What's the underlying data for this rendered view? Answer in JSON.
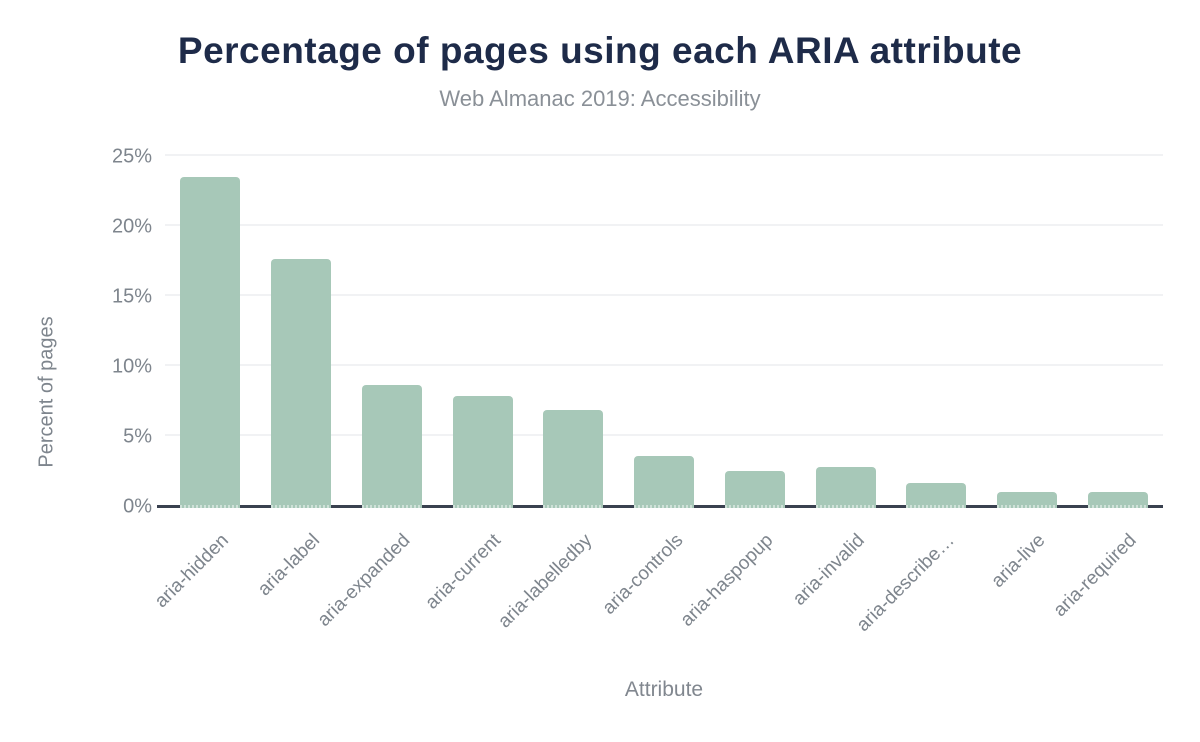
{
  "header": {
    "title": "Percentage of pages using each ARIA attribute",
    "subtitle": "Web Almanac 2019: Accessibility"
  },
  "chart_data": {
    "type": "bar",
    "title": "Percentage of pages using each ARIA attribute",
    "subtitle": "Web Almanac 2019: Accessibility",
    "xlabel": "Attribute",
    "ylabel": "Percent of pages",
    "categories": [
      "aria-hidden",
      "aria-label",
      "aria-expanded",
      "aria-current",
      "aria-labelledby",
      "aria-controls",
      "aria-haspopup",
      "aria-invalid",
      "aria-describe…",
      "aria-live",
      "aria-required"
    ],
    "values": [
      23.4,
      17.6,
      8.6,
      7.8,
      6.8,
      3.5,
      2.4,
      2.7,
      1.6,
      0.9,
      0.9
    ],
    "ylim": [
      0,
      25
    ],
    "yticks": [
      "0%",
      "5%",
      "10%",
      "15%",
      "20%",
      "25%"
    ],
    "ytick_values": [
      0,
      5,
      10,
      15,
      20,
      25
    ],
    "grid": "horizontal-only",
    "legend": "none",
    "bar_color": "#a7c8b8",
    "axis_line_color": "#39414f",
    "gridline_color": "#f1f2f4",
    "tick_label_color": "#7e858d",
    "title_color": "#1e2b49",
    "subtitle_color": "#8a9097",
    "background_color": "#ffffff"
  }
}
